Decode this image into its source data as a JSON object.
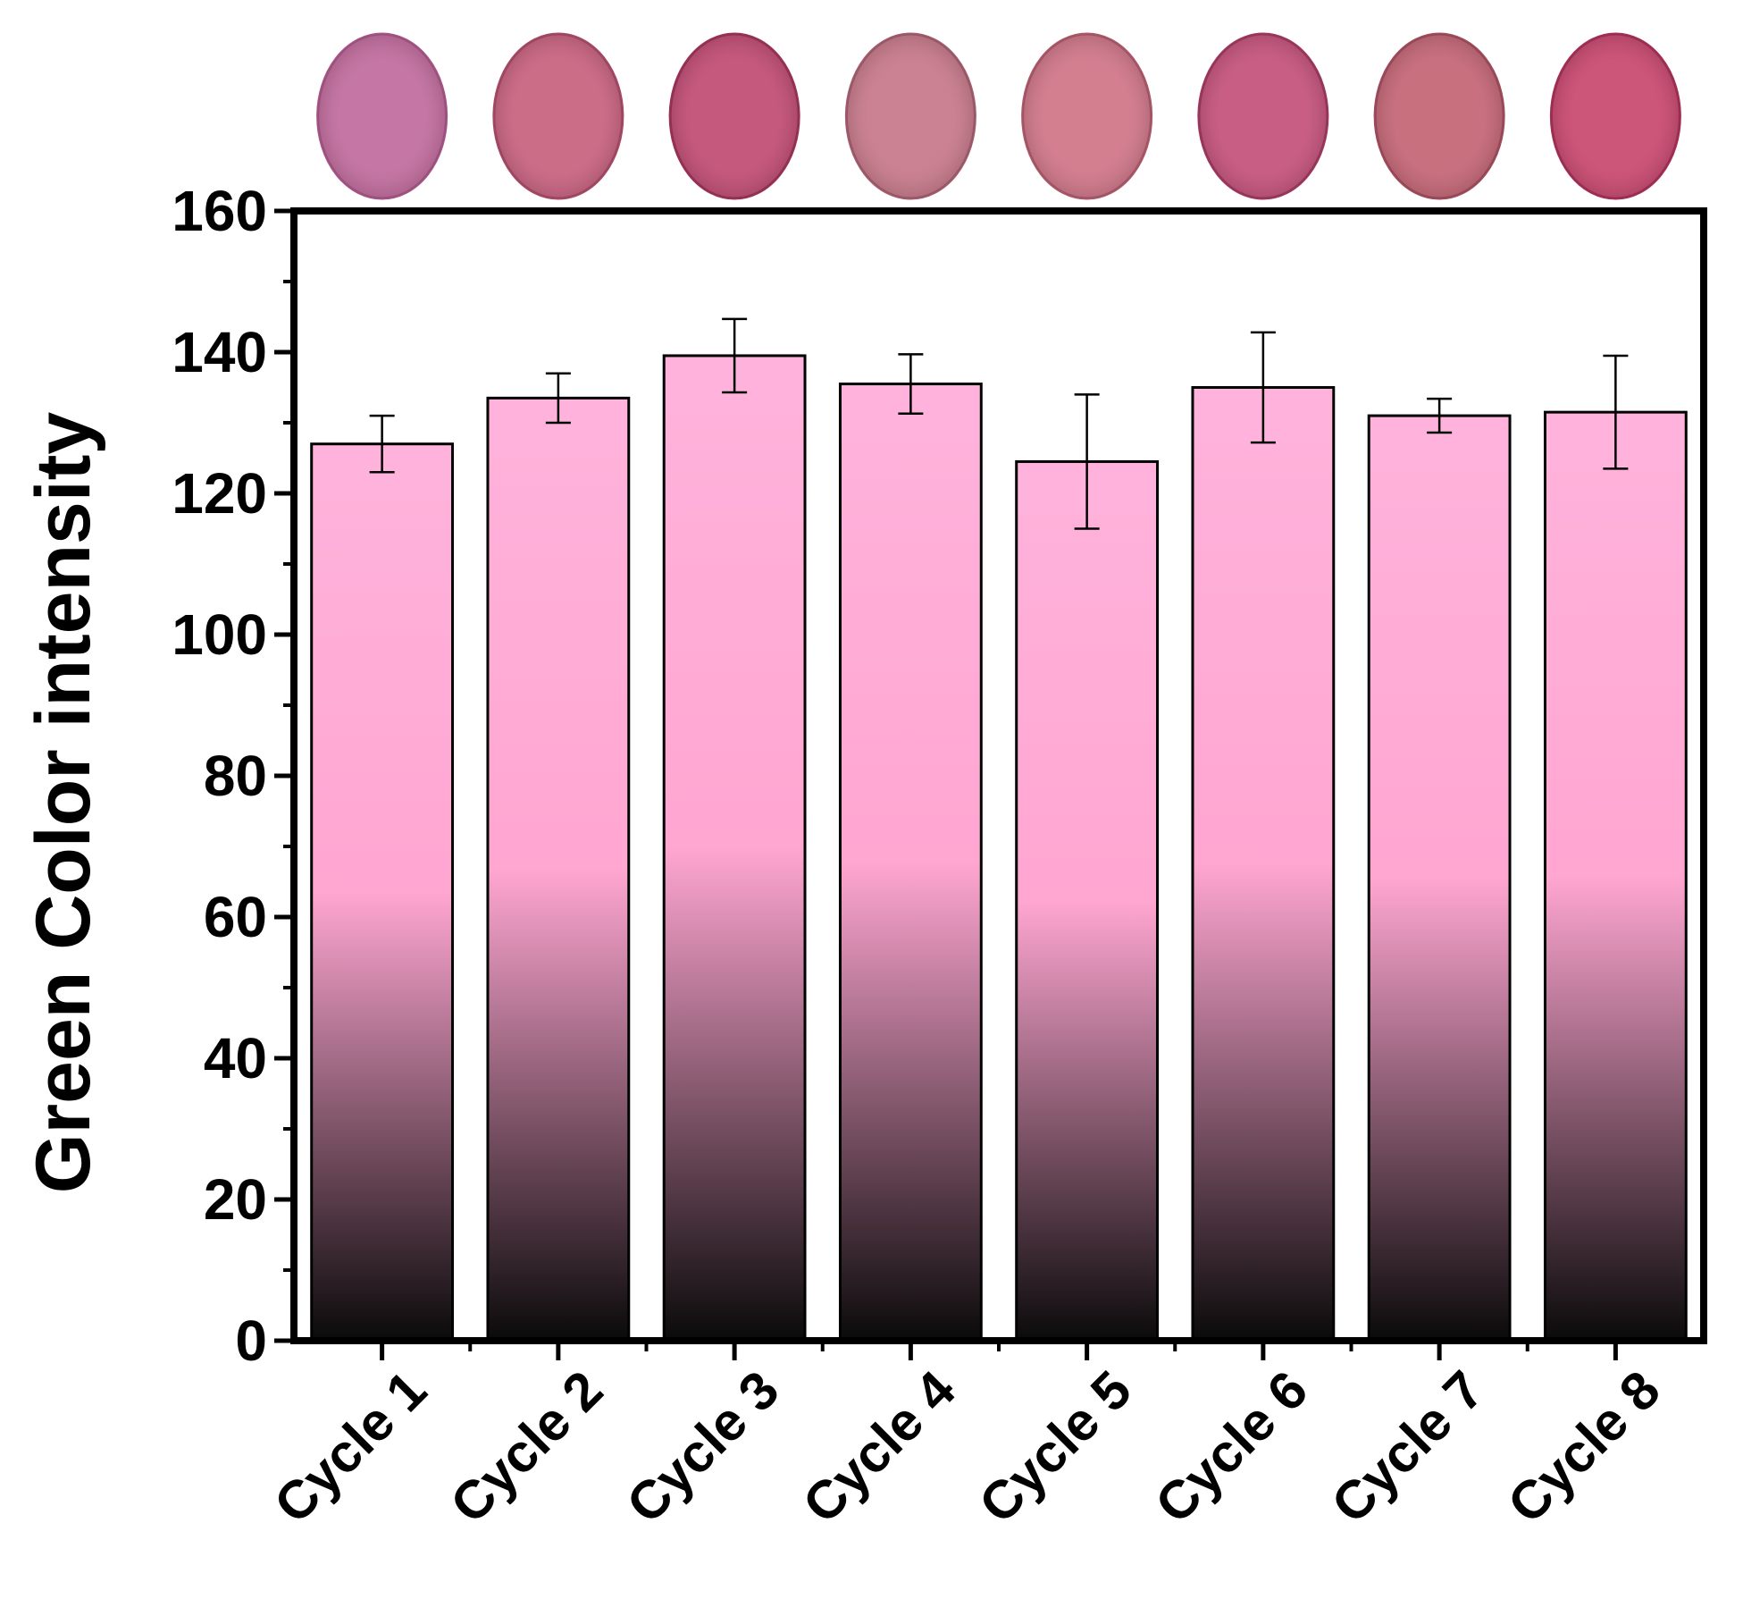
{
  "chart_data": {
    "type": "bar",
    "title": "",
    "xlabel": "",
    "ylabel": "Green Color intensity",
    "ylim": [
      0,
      160
    ],
    "yticks": [
      "0",
      "20",
      "40",
      "60",
      "80",
      "100",
      "120",
      "140",
      "160"
    ],
    "categories": [
      "Cycle 1",
      "Cycle 2",
      "Cycle 3",
      "Cycle 4",
      "Cycle 5",
      "Cycle 6",
      "Cycle 7",
      "Cycle 8"
    ],
    "series": [
      {
        "name": "Green Color intensity",
        "values": [
          127,
          133.5,
          139.5,
          135.5,
          124.5,
          135,
          131,
          131.5
        ],
        "errors": [
          4,
          3.5,
          5.2,
          4.2,
          9.5,
          7.8,
          2.4,
          8
        ]
      }
    ],
    "sample_images": [
      {
        "label": "Cycle 1",
        "color": "#c06a9c",
        "edge": "#a85386"
      },
      {
        "label": "Cycle 2",
        "color": "#c8607e",
        "edge": "#a84865"
      },
      {
        "label": "Cycle 3",
        "color": "#c04a72",
        "edge": "#9b2f57"
      },
      {
        "label": "Cycle 4",
        "color": "#c67788",
        "edge": "#a35b6d"
      },
      {
        "label": "Cycle 5",
        "color": "#cf7487",
        "edge": "#ad5769"
      },
      {
        "label": "Cycle 6",
        "color": "#c45079",
        "edge": "#9f355d"
      },
      {
        "label": "Cycle 7",
        "color": "#c46474",
        "edge": "#a04a5b"
      },
      {
        "label": "Cycle 8",
        "color": "#c8466e",
        "edge": "#a52c54"
      }
    ],
    "bar_gradient": {
      "top": "#ffb3dc",
      "mid": "#ffa6d1",
      "bottom": "#0a0a0a"
    }
  }
}
